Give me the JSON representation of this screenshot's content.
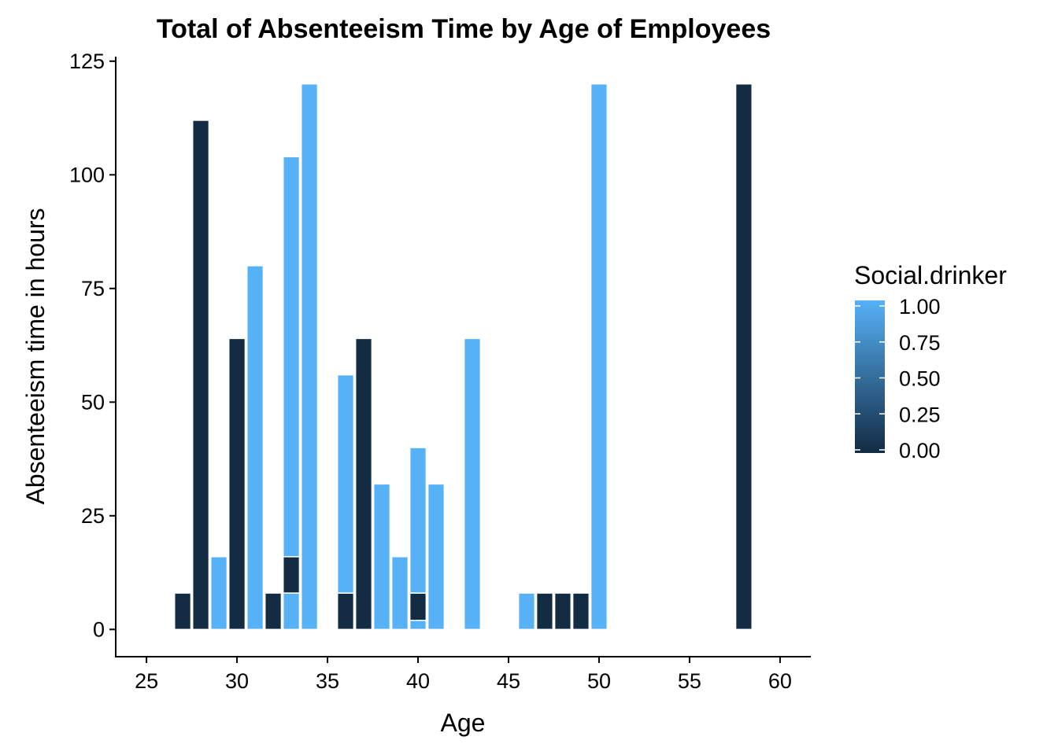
{
  "chart_data": {
    "type": "bar",
    "title": "Total of Absenteeism Time by Age of Employees",
    "xlabel": "Age",
    "ylabel": "Absenteeism time in hours",
    "xlim": [
      23.3,
      61.7
    ],
    "ylim": [
      -6,
      126
    ],
    "x_ticks": [
      25,
      30,
      35,
      40,
      45,
      50,
      55,
      60
    ],
    "y_ticks": [
      0,
      25,
      50,
      75,
      100,
      125
    ],
    "stacked": true,
    "bar_outline": "#ffffff",
    "colors": {
      "low": "#132B43",
      "high": "#56B1F7"
    },
    "bars": [
      {
        "age": 27,
        "segments": [
          {
            "value": 8,
            "social_drinker": 0
          }
        ]
      },
      {
        "age": 28,
        "segments": [
          {
            "value": 112,
            "social_drinker": 0
          }
        ]
      },
      {
        "age": 29,
        "segments": [
          {
            "value": 16,
            "social_drinker": 1
          }
        ]
      },
      {
        "age": 30,
        "segments": [
          {
            "value": 64,
            "social_drinker": 0
          }
        ]
      },
      {
        "age": 31,
        "segments": [
          {
            "value": 80,
            "social_drinker": 1
          }
        ]
      },
      {
        "age": 32,
        "segments": [
          {
            "value": 8,
            "social_drinker": 0
          }
        ]
      },
      {
        "age": 33,
        "segments": [
          {
            "value": 8,
            "social_drinker": 1
          },
          {
            "value": 8,
            "social_drinker": 0
          },
          {
            "value": 88,
            "social_drinker": 1
          }
        ]
      },
      {
        "age": 34,
        "segments": [
          {
            "value": 120,
            "social_drinker": 1
          }
        ]
      },
      {
        "age": 36,
        "segments": [
          {
            "value": 8,
            "social_drinker": 0
          },
          {
            "value": 48,
            "social_drinker": 1
          }
        ]
      },
      {
        "age": 37,
        "segments": [
          {
            "value": 64,
            "social_drinker": 0
          }
        ]
      },
      {
        "age": 38,
        "segments": [
          {
            "value": 32,
            "social_drinker": 1
          }
        ]
      },
      {
        "age": 39,
        "segments": [
          {
            "value": 16,
            "social_drinker": 1
          }
        ]
      },
      {
        "age": 40,
        "segments": [
          {
            "value": 2,
            "social_drinker": 1
          },
          {
            "value": 6,
            "social_drinker": 0
          },
          {
            "value": 32,
            "social_drinker": 1
          }
        ]
      },
      {
        "age": 41,
        "segments": [
          {
            "value": 32,
            "social_drinker": 1
          }
        ]
      },
      {
        "age": 43,
        "segments": [
          {
            "value": 64,
            "social_drinker": 1
          }
        ]
      },
      {
        "age": 46,
        "segments": [
          {
            "value": 8,
            "social_drinker": 1
          }
        ]
      },
      {
        "age": 47,
        "segments": [
          {
            "value": 8,
            "social_drinker": 0
          }
        ]
      },
      {
        "age": 48,
        "segments": [
          {
            "value": 8,
            "social_drinker": 0
          }
        ]
      },
      {
        "age": 49,
        "segments": [
          {
            "value": 8,
            "social_drinker": 0
          }
        ]
      },
      {
        "age": 50,
        "segments": [
          {
            "value": 120,
            "social_drinker": 1
          }
        ]
      },
      {
        "age": 58,
        "segments": [
          {
            "value": 120,
            "social_drinker": 0
          }
        ]
      }
    ],
    "legend": {
      "title": "Social.drinker",
      "type": "colorbar",
      "placement": "right",
      "range": [
        0,
        1
      ],
      "breaks": [
        1.0,
        0.75,
        0.5,
        0.25,
        0.0
      ],
      "labels": [
        "1.00",
        "0.75",
        "0.50",
        "0.25",
        "0.00"
      ]
    }
  }
}
